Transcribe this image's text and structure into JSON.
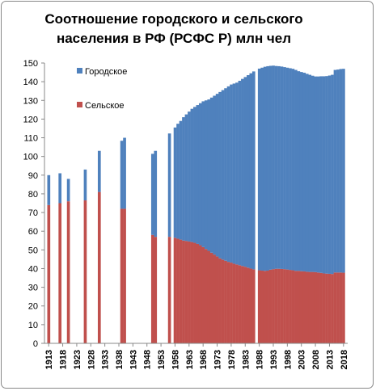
{
  "chart_data": {
    "type": "stacked-bar",
    "title": "Соотношение городского и сельского населения в РФ (РСФС Р) млн чел",
    "x": [
      1913,
      1917,
      1920,
      1926,
      1931,
      1939,
      1940,
      1950,
      1951,
      1956,
      1958,
      1959,
      1960,
      1961,
      1962,
      1963,
      1964,
      1965,
      1966,
      1967,
      1968,
      1969,
      1970,
      1971,
      1972,
      1973,
      1974,
      1975,
      1976,
      1977,
      1978,
      1979,
      1980,
      1981,
      1982,
      1983,
      1984,
      1985,
      1986,
      1988,
      1989,
      1990,
      1991,
      1992,
      1993,
      1994,
      1995,
      1996,
      1997,
      1998,
      1999,
      2000,
      2001,
      2002,
      2003,
      2004,
      2005,
      2006,
      2007,
      2008,
      2009,
      2010,
      2011,
      2012,
      2013,
      2014,
      2015,
      2016,
      2017,
      2018
    ],
    "series": [
      {
        "name": "Сельское",
        "color": "#c0504d",
        "values": [
          74,
          75,
          76,
          76.5,
          81,
          72,
          72,
          58,
          57,
          57,
          56.5,
          56,
          55.5,
          55,
          54.8,
          54.5,
          54.2,
          53.8,
          53.2,
          52.5,
          51.5,
          50.5,
          49.5,
          48.5,
          47.5,
          46.5,
          45.5,
          44.8,
          44.2,
          43.6,
          43.2,
          42.6,
          42.2,
          41.8,
          41.4,
          41,
          40.5,
          40,
          39.6,
          39.1,
          38.9,
          38.8,
          38.9,
          39.4,
          39.7,
          39.9,
          39.9,
          39.8,
          39.7,
          39.5,
          39.3,
          39.1,
          38.8,
          38.8,
          38.6,
          38.5,
          38.3,
          38.2,
          38.2,
          38.1,
          37.9,
          37.7,
          37.4,
          37.3,
          37.2,
          37.1,
          37.9,
          37.9,
          37.9,
          37.8
        ]
      },
      {
        "name": "Городское",
        "color": "#4f81bd",
        "values": [
          16,
          16,
          12,
          16.5,
          22,
          36.4,
          38,
          43.4,
          46,
          55.3,
          59,
          61.5,
          63.5,
          66,
          67.7,
          69.5,
          71.3,
          72.7,
          74.3,
          76,
          78,
          79.5,
          81,
          83,
          85,
          87,
          89,
          90.7,
          92.3,
          93.9,
          95.3,
          96.4,
          97.3,
          98.7,
          100.1,
          101.5,
          103,
          104.5,
          105.9,
          107.9,
          108.6,
          109.2,
          109.4,
          109.1,
          108.9,
          108.5,
          108.4,
          108.3,
          108.1,
          108,
          107.9,
          107.8,
          107.5,
          106.8,
          106.6,
          106.3,
          105.9,
          105.5,
          105,
          104.7,
          104.9,
          105.2,
          105.5,
          105.7,
          106.1,
          106.6,
          108.4,
          108.6,
          108.9,
          109.1
        ]
      }
    ],
    "xlim": [
      1911.5,
      2019.5
    ],
    "xticks": [
      1913,
      1918,
      1923,
      1928,
      1933,
      1938,
      1943,
      1948,
      1953,
      1958,
      1963,
      1968,
      1973,
      1978,
      1983,
      1988,
      1993,
      1998,
      2003,
      2008,
      2013,
      2018
    ],
    "ylim": [
      0,
      150
    ],
    "yticks": [
      0,
      10,
      20,
      30,
      40,
      50,
      60,
      70,
      80,
      90,
      100,
      110,
      120,
      130,
      140,
      150
    ],
    "grid": false,
    "legend": "upper-left"
  }
}
